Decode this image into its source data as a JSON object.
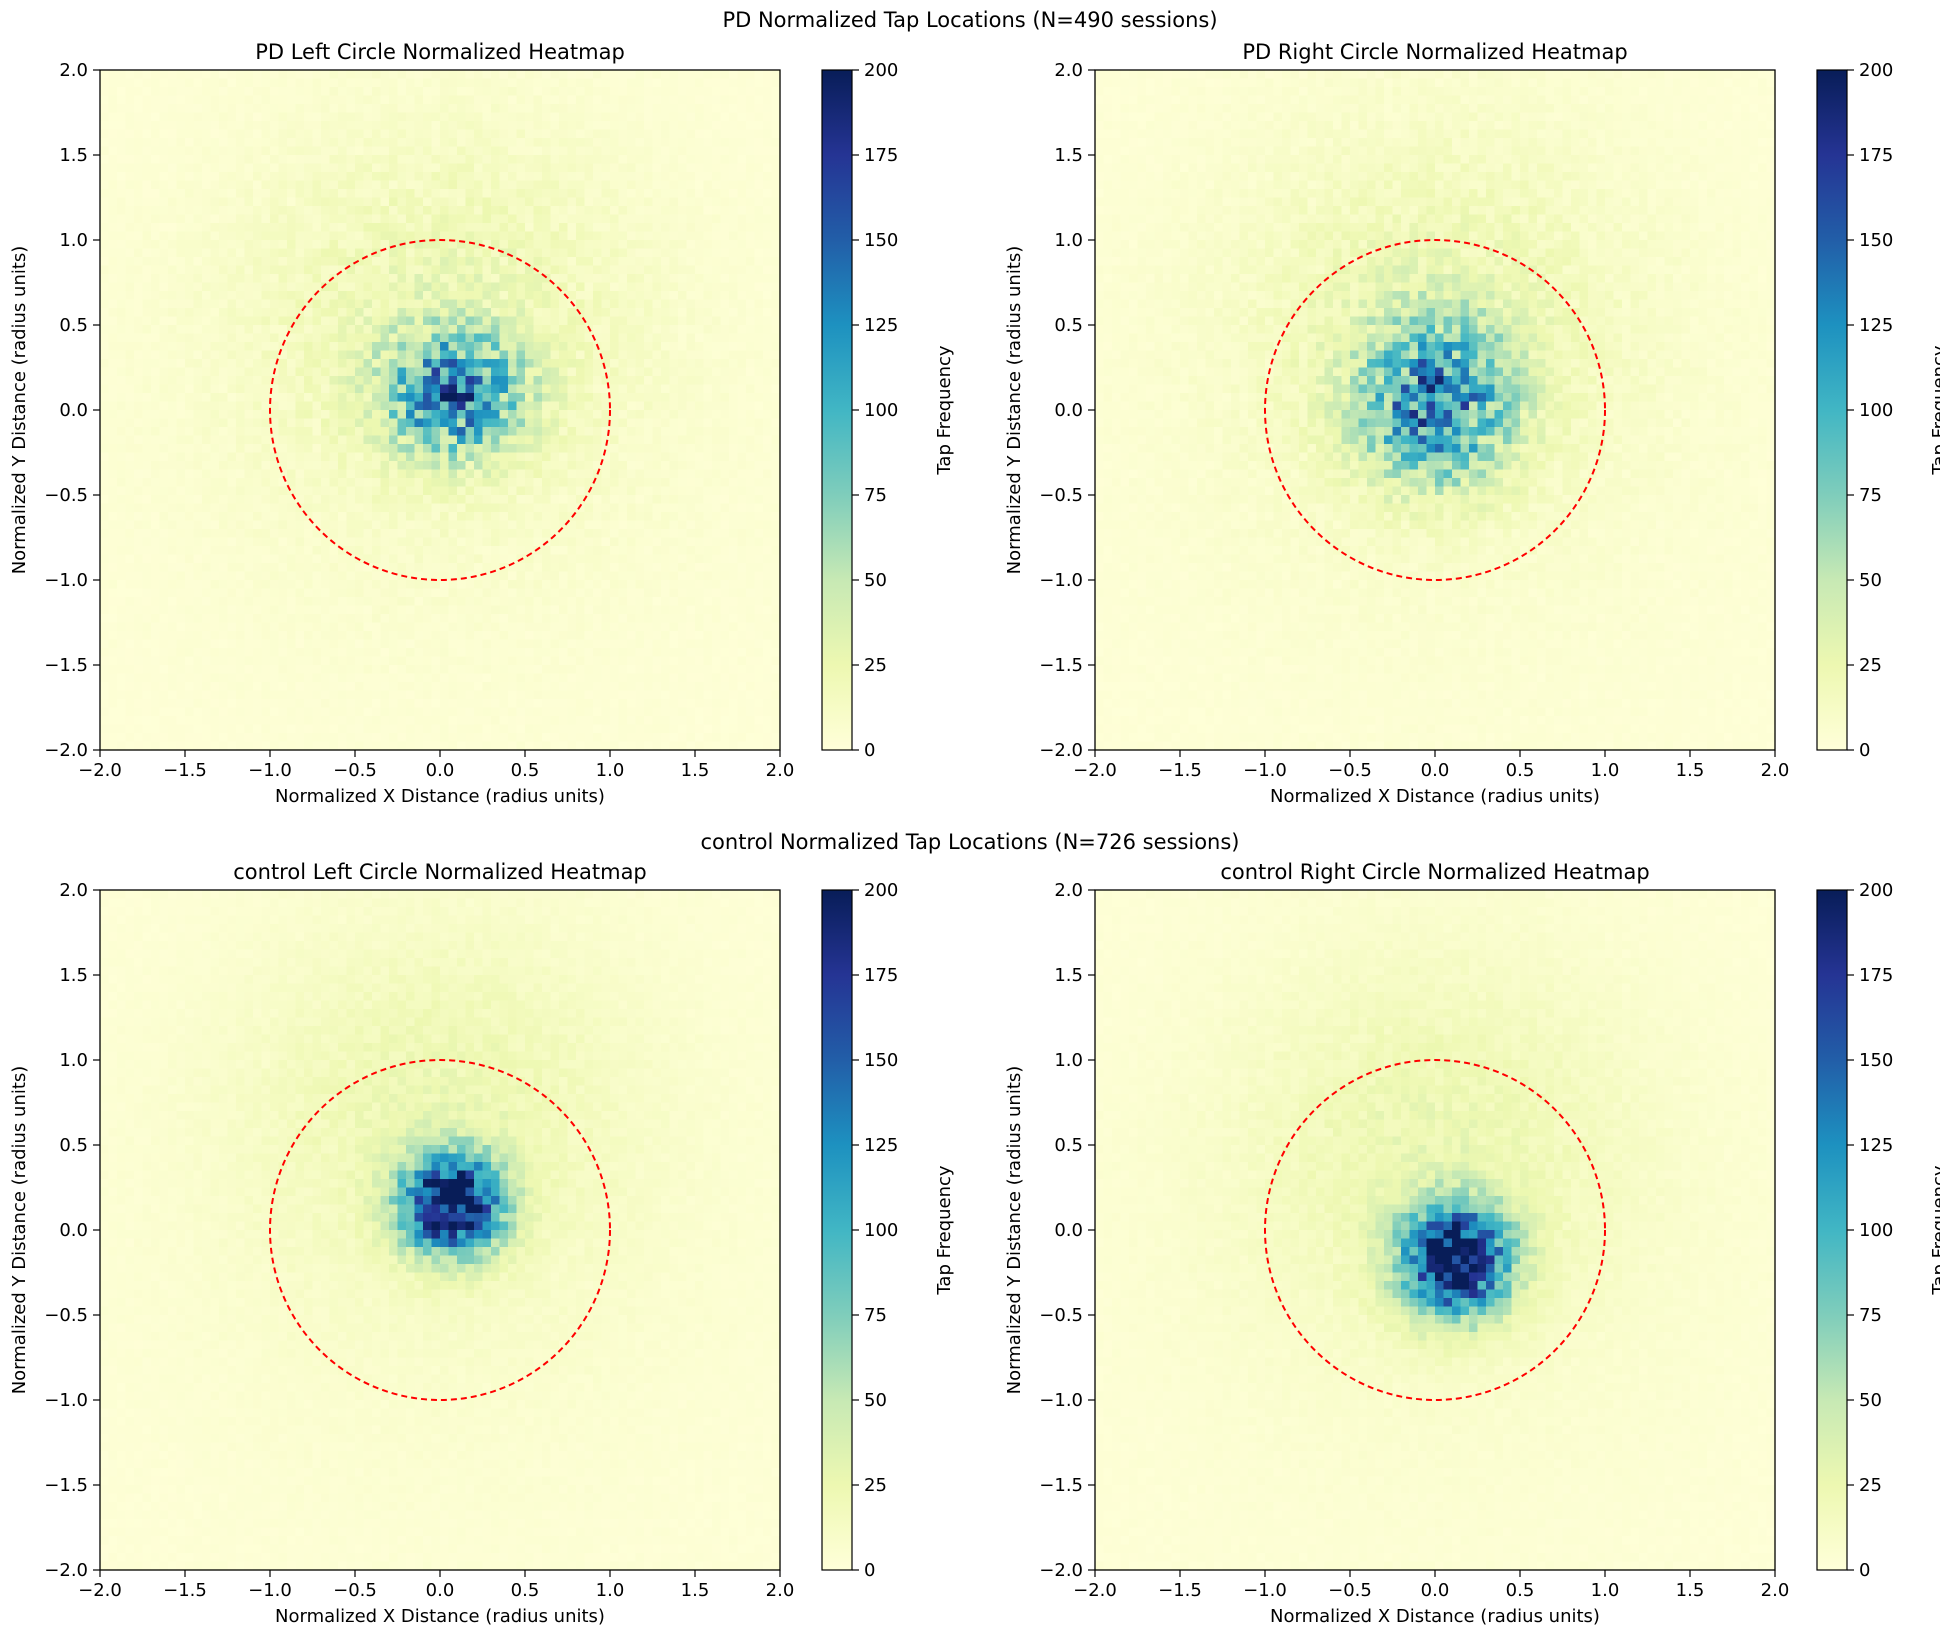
{
  "figure": {
    "suptitles": [
      "PD Normalized Tap Locations (N=490 sessions)",
      "control Normalized Tap Locations (N=726 sessions)"
    ]
  },
  "colormap": {
    "name": "YlGnBu",
    "stops": [
      "#ffffd9",
      "#edf8b1",
      "#c7e9b4",
      "#7fcdbb",
      "#41b6c4",
      "#1d91c0",
      "#225ea8",
      "#253494",
      "#081d58"
    ]
  },
  "colors": {
    "circle": "#ff0000",
    "axis": "#000000"
  },
  "chart_data": [
    {
      "type": "heatmap",
      "title": "PD Left Circle Normalized Heatmap",
      "xlabel": "Normalized X Distance (radius units)",
      "ylabel": "Normalized Y Distance (radius units)",
      "xlim": [
        -2.0,
        2.0
      ],
      "ylim": [
        -2.0,
        2.0
      ],
      "xticks": [
        "−2.0",
        "−1.5",
        "−1.0",
        "−0.5",
        "0.0",
        "0.5",
        "1.0",
        "1.5",
        "2.0"
      ],
      "yticks": [
        "−2.0",
        "−1.5",
        "−1.0",
        "−0.5",
        "0.0",
        "0.5",
        "1.0",
        "1.5",
        "2.0"
      ],
      "colorbar": {
        "label": "Tap Frequency",
        "min": 0,
        "max": 200,
        "ticks": [
          "0",
          "25",
          "50",
          "75",
          "100",
          "125",
          "150",
          "175",
          "200"
        ]
      },
      "reference_circle": {
        "center": [
          0.0,
          0.0
        ],
        "radius": 1.0,
        "style": "dashed"
      },
      "bins": 80,
      "distribution": {
        "center_x": 0.08,
        "center_y": 0.1,
        "sigma_x": 0.27,
        "sigma_y": 0.24,
        "peak": 120,
        "noise": 0.55,
        "halo_y": 0.95
      }
    },
    {
      "type": "heatmap",
      "title": "PD Right Circle Normalized Heatmap",
      "xlabel": "Normalized X Distance (radius units)",
      "ylabel": "Normalized Y Distance (radius units)",
      "xlim": [
        -2.0,
        2.0
      ],
      "ylim": [
        -2.0,
        2.0
      ],
      "xticks": [
        "−2.0",
        "−1.5",
        "−1.0",
        "−0.5",
        "0.0",
        "0.5",
        "1.0",
        "1.5",
        "2.0"
      ],
      "yticks": [
        "−2.0",
        "−1.5",
        "−1.0",
        "−0.5",
        "0.0",
        "0.5",
        "1.0",
        "1.5",
        "2.0"
      ],
      "colorbar": {
        "label": "Tap Frequency",
        "min": 0,
        "max": 200,
        "ticks": [
          "0",
          "25",
          "50",
          "75",
          "100",
          "125",
          "150",
          "175",
          "200"
        ]
      },
      "reference_circle": {
        "center": [
          0.0,
          0.0
        ],
        "radius": 1.0,
        "style": "dashed"
      },
      "bins": 80,
      "distribution": {
        "center_x": 0.0,
        "center_y": 0.05,
        "sigma_x": 0.3,
        "sigma_y": 0.32,
        "peak": 115,
        "noise": 0.55,
        "halo_y": 1.0
      }
    },
    {
      "type": "heatmap",
      "title": "control Left Circle Normalized Heatmap",
      "xlabel": "Normalized X Distance (radius units)",
      "ylabel": "Normalized Y Distance (radius units)",
      "xlim": [
        -2.0,
        2.0
      ],
      "ylim": [
        -2.0,
        2.0
      ],
      "xticks": [
        "−2.0",
        "−1.5",
        "−1.0",
        "−0.5",
        "0.0",
        "0.5",
        "1.0",
        "1.5",
        "2.0"
      ],
      "yticks": [
        "−2.0",
        "−1.5",
        "−1.0",
        "−0.5",
        "0.0",
        "0.5",
        "1.0",
        "1.5",
        "2.0"
      ],
      "colorbar": {
        "label": "Tap Frequency",
        "min": 0,
        "max": 200,
        "ticks": [
          "0",
          "25",
          "50",
          "75",
          "100",
          "125",
          "150",
          "175",
          "200"
        ]
      },
      "reference_circle": {
        "center": [
          0.0,
          0.0
        ],
        "radius": 1.0,
        "style": "dashed"
      },
      "bins": 80,
      "distribution": {
        "center_x": 0.07,
        "center_y": 0.15,
        "sigma_x": 0.2,
        "sigma_y": 0.2,
        "peak": 200,
        "noise": 0.35,
        "halo_y": 1.25
      }
    },
    {
      "type": "heatmap",
      "title": "control Right Circle Normalized Heatmap",
      "xlabel": "Normalized X Distance (radius units)",
      "ylabel": "Normalized Y Distance (radius units)",
      "xlim": [
        -2.0,
        2.0
      ],
      "ylim": [
        -2.0,
        2.0
      ],
      "xticks": [
        "−2.0",
        "−1.5",
        "−1.0",
        "−0.5",
        "0.0",
        "0.5",
        "1.0",
        "1.5",
        "2.0"
      ],
      "yticks": [
        "−2.0",
        "−1.5",
        "−1.0",
        "−0.5",
        "0.0",
        "0.5",
        "1.0",
        "1.5",
        "2.0"
      ],
      "colorbar": {
        "label": "Tap Frequency",
        "min": 0,
        "max": 200,
        "ticks": [
          "0",
          "25",
          "50",
          "75",
          "100",
          "125",
          "150",
          "175",
          "200"
        ]
      },
      "reference_circle": {
        "center": [
          0.0,
          0.0
        ],
        "radius": 1.0,
        "style": "dashed"
      },
      "bins": 80,
      "distribution": {
        "center_x": 0.12,
        "center_y": -0.18,
        "sigma_x": 0.22,
        "sigma_y": 0.22,
        "peak": 200,
        "noise": 0.35,
        "halo_y": 0.9
      }
    }
  ]
}
